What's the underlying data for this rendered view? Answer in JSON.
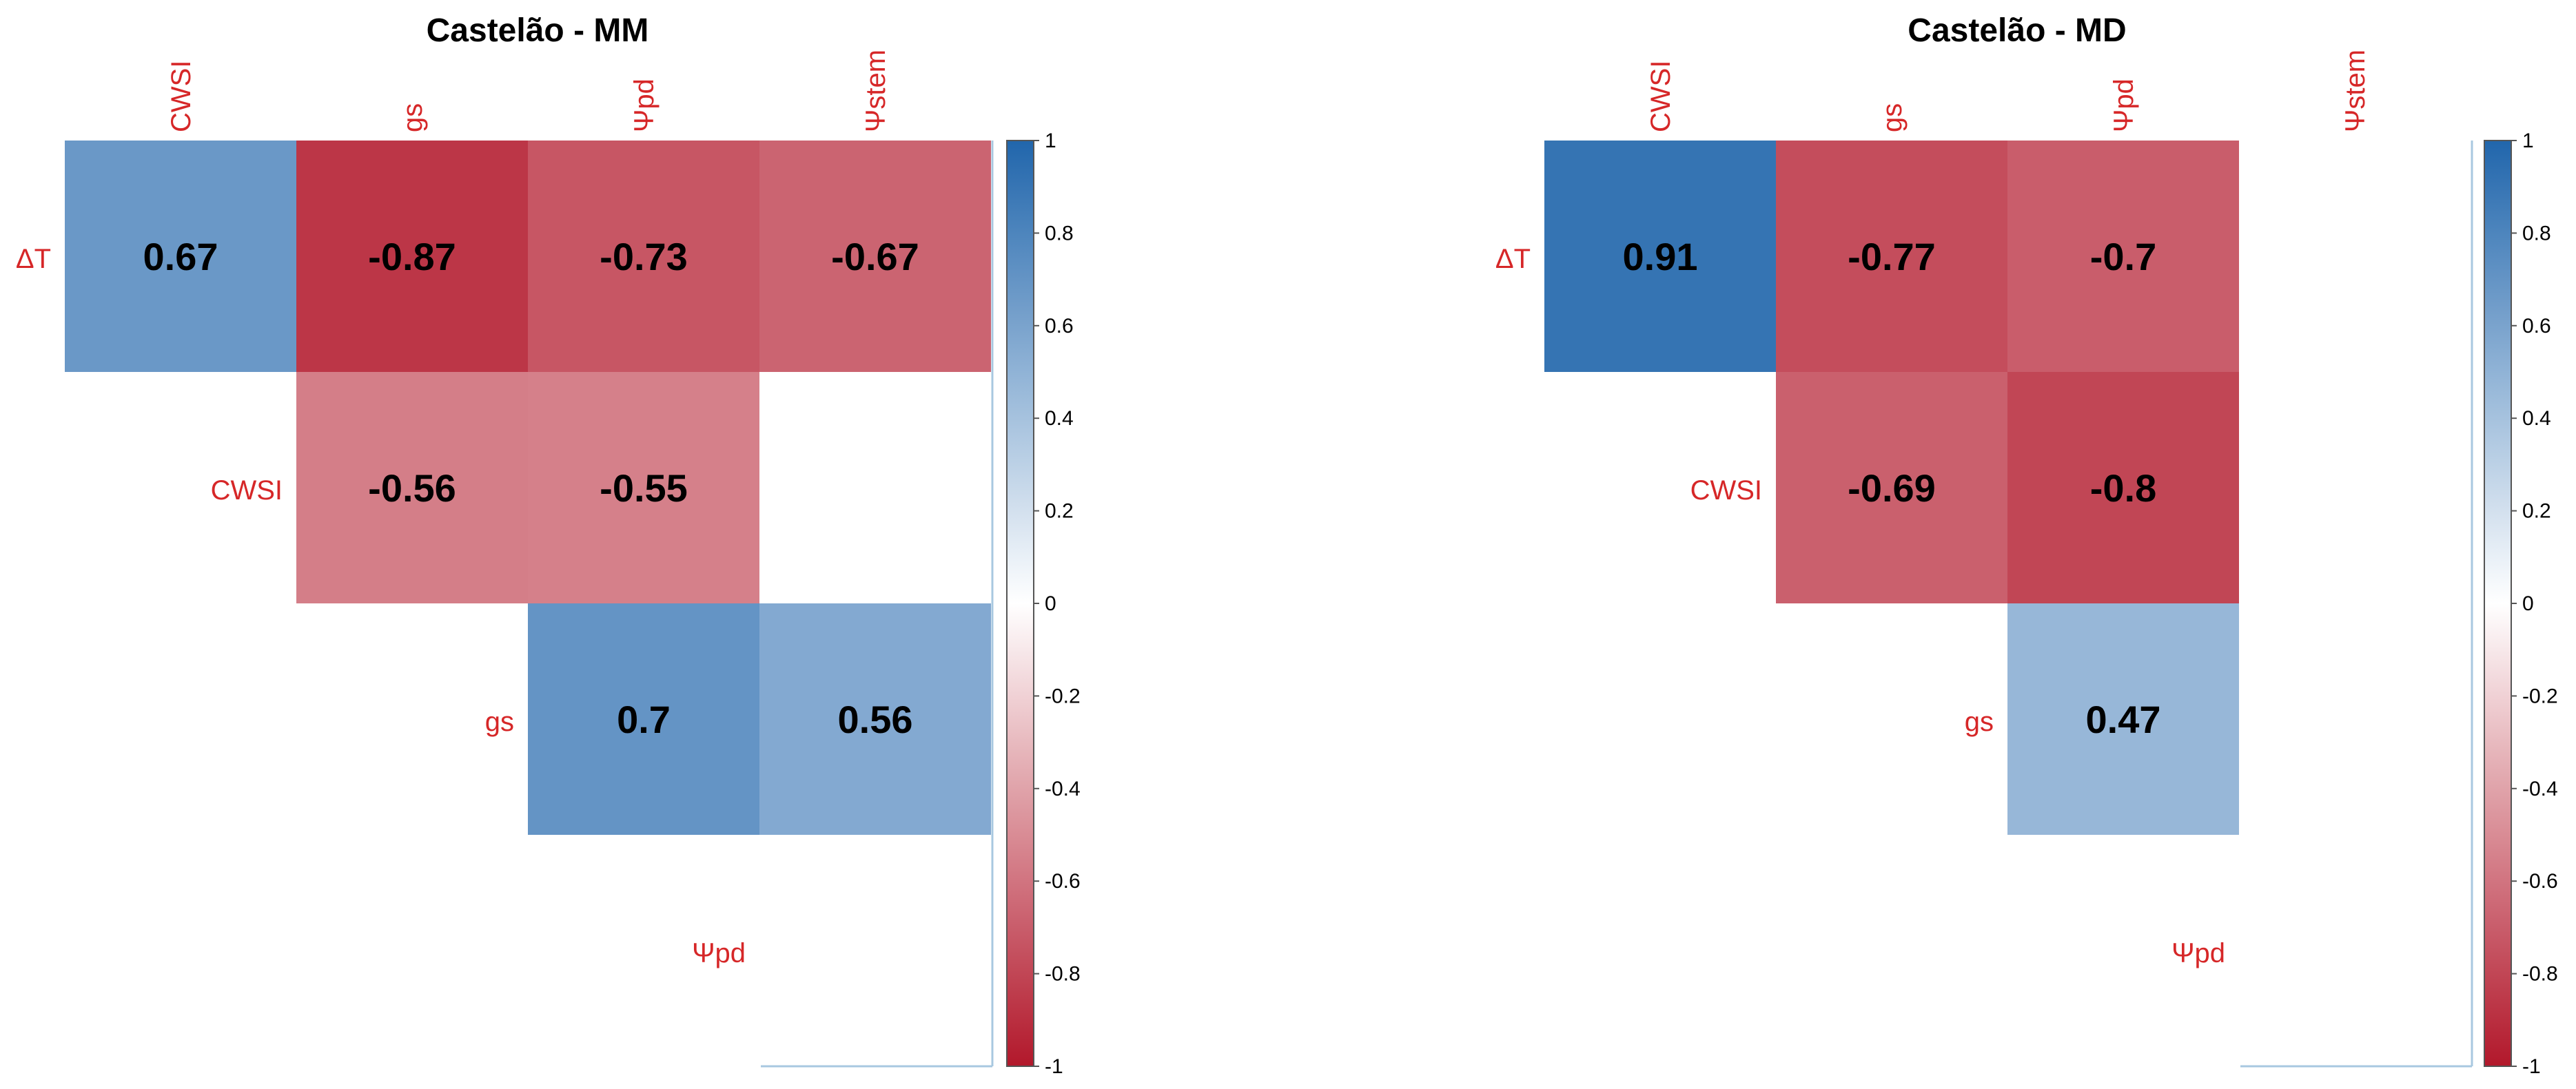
{
  "colors": {
    "negative": "#b2182b",
    "neutral": "#ffffff",
    "positive": "#2166ac",
    "label": "#d62728"
  },
  "colorbar_ticks": [
    "1",
    "0.8",
    "0.6",
    "0.4",
    "0.2",
    "0",
    "-0.2",
    "-0.4",
    "-0.6",
    "-0.8",
    "-1"
  ],
  "chart_data": [
    {
      "type": "heatmap",
      "title": "Castelão - MM",
      "columns": [
        "CWSI",
        "gs",
        "Ψpd",
        "Ψstem"
      ],
      "rows": [
        "ΔT",
        "CWSI",
        "gs",
        "Ψpd"
      ],
      "cells": [
        {
          "row": 0,
          "col": 0,
          "value": 0.67,
          "label": "0.67"
        },
        {
          "row": 0,
          "col": 1,
          "value": -0.87,
          "label": "-0.87"
        },
        {
          "row": 0,
          "col": 2,
          "value": -0.73,
          "label": "-0.73"
        },
        {
          "row": 0,
          "col": 3,
          "value": -0.67,
          "label": "-0.67"
        },
        {
          "row": 1,
          "col": 1,
          "value": -0.56,
          "label": "-0.56"
        },
        {
          "row": 1,
          "col": 2,
          "value": -0.55,
          "label": "-0.55"
        },
        {
          "row": 2,
          "col": 2,
          "value": 0.7,
          "label": "0.7"
        },
        {
          "row": 2,
          "col": 3,
          "value": 0.56,
          "label": "0.56"
        }
      ],
      "colorbar_range": [
        -1,
        1
      ]
    },
    {
      "type": "heatmap",
      "title": "Castelão - MD",
      "columns": [
        "CWSI",
        "gs",
        "Ψpd",
        "Ψstem"
      ],
      "rows": [
        "ΔT",
        "CWSI",
        "gs",
        "Ψpd"
      ],
      "cells": [
        {
          "row": 0,
          "col": 0,
          "value": 0.91,
          "label": "0.91"
        },
        {
          "row": 0,
          "col": 1,
          "value": -0.77,
          "label": "-0.77"
        },
        {
          "row": 0,
          "col": 2,
          "value": -0.7,
          "label": "-0.7"
        },
        {
          "row": 1,
          "col": 1,
          "value": -0.69,
          "label": "-0.69"
        },
        {
          "row": 1,
          "col": 2,
          "value": -0.8,
          "label": "-0.8"
        },
        {
          "row": 2,
          "col": 2,
          "value": 0.47,
          "label": "0.47"
        }
      ],
      "colorbar_range": [
        -1,
        1
      ]
    }
  ]
}
